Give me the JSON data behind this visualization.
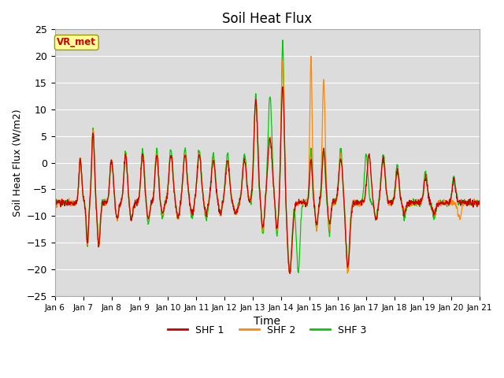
{
  "title": "Soil Heat Flux",
  "xlabel": "Time",
  "ylabel": "Soil Heat Flux (W/m2)",
  "ylim": [
    -25,
    25
  ],
  "yticks": [
    -25,
    -20,
    -15,
    -10,
    -5,
    0,
    5,
    10,
    15,
    20,
    25
  ],
  "xtick_labels": [
    "Jan 6",
    "Jan 7",
    "Jan 8",
    "Jan 9",
    "Jan 10",
    "Jan 11",
    "Jan 12",
    "Jan 13",
    "Jan 14",
    "Jan 15",
    "Jan 16",
    "Jan 17",
    "Jan 18",
    "Jan 19",
    "Jan 20",
    "Jan 21"
  ],
  "annotation_text": "VR_met",
  "annotation_color": "#cc0000",
  "annotation_bg": "#ffff99",
  "line_colors": [
    "#cc0000",
    "#ff8800",
    "#00cc00"
  ],
  "line_labels": [
    "SHF 1",
    "SHF 2",
    "SHF 3"
  ],
  "axes_bg": "#dcdcdc",
  "n_points": 1440
}
